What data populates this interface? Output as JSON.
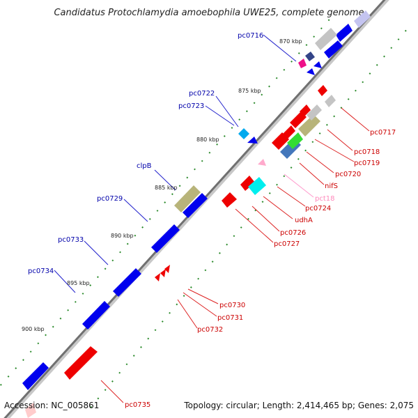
{
  "title": "Candidatus Protochlamydia amoebophila UWE25, complete genome",
  "footer": {
    "accession": "Accession: NC_005861",
    "topology": "Topology: circular; Length: 2,414,465 bp; Genes: 2,075"
  },
  "scale_labels": [
    "870 kbp",
    "875 kbp",
    "880 kbp",
    "885 kbp",
    "890 kbp",
    "895 kbp",
    "900 kbp"
  ],
  "colors": {
    "forward": "#0000ff",
    "reverse": "#ff0000",
    "backbone": "#777777",
    "forward_label": "#0000aa",
    "reverse_label": "#cc0000",
    "rna_label": "#ff88bb"
  },
  "genes_forward": [
    {
      "label": "pc0716"
    },
    {
      "label": "pc0722"
    },
    {
      "label": "pc0723"
    },
    {
      "label": "clpB"
    },
    {
      "label": "pc0729"
    },
    {
      "label": "pc0733"
    },
    {
      "label": "pc0734"
    }
  ],
  "genes_reverse": [
    {
      "label": "pc0717"
    },
    {
      "label": "pc0718"
    },
    {
      "label": "pc0719"
    },
    {
      "label": "pc0720"
    },
    {
      "label": "nifS"
    },
    {
      "label": "pct18"
    },
    {
      "label": "pc0724"
    },
    {
      "label": "udhA"
    },
    {
      "label": "pc0726"
    },
    {
      "label": "pc0727"
    },
    {
      "label": "pc0730"
    },
    {
      "label": "pc0731"
    },
    {
      "label": "pc0732"
    },
    {
      "label": "pc0735"
    }
  ]
}
